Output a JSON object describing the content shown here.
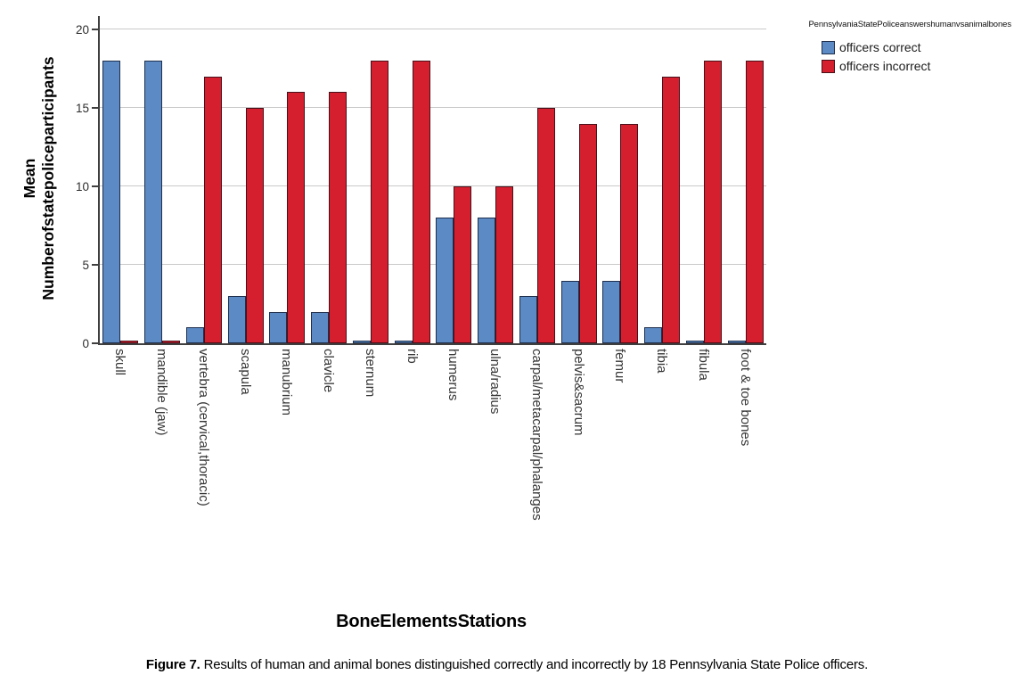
{
  "figure": {
    "caption_label": "Figure 7.",
    "caption_text": " Results of human and animal bones distinguished correctly and incorrectly by 18 Pennsylvania State Police officers."
  },
  "chart_data": {
    "type": "bar",
    "legend_title": "PennsylvaniaStatePoliceanswershumanvsanimalbones",
    "legend_position": "top-right",
    "xlabel": "BoneElementsStations",
    "ylabel": "Mean Numberofstatepoliceparticipants",
    "ylabel_lines": [
      "Mean",
      "Numberofstatepoliceparticipants"
    ],
    "ylim": [
      0,
      20
    ],
    "yticks": [
      0,
      5,
      10,
      15,
      20
    ],
    "grid": "horizontal",
    "axis_color": "#3f3f3f",
    "grid_color": "#c9c9c9",
    "categories": [
      "skull",
      "mandible (jaw)",
      "vertebra (cervical,thoracic)",
      "scapula",
      "manubrium",
      "clavicle",
      "sternum",
      "rib",
      "humerus",
      "ulna/radius",
      "carpal/metacarpal/phalanges",
      "pelvis&sacrum",
      "femur",
      "tibia",
      "fibula",
      "foot & toe bones"
    ],
    "series": [
      {
        "name": "officers correct",
        "color": "#5b8ac4",
        "border_color": "#1f2f4d",
        "values": [
          18,
          18,
          1,
          3,
          2,
          2,
          0,
          0,
          8,
          8,
          3,
          4,
          4,
          1,
          0,
          0
        ]
      },
      {
        "name": "officers incorrect",
        "color": "#d61f2e",
        "border_color": "#471019",
        "values": [
          0,
          0,
          17,
          15,
          16,
          16,
          18,
          18,
          10,
          10,
          15,
          14,
          14,
          17,
          18,
          18
        ]
      }
    ]
  }
}
